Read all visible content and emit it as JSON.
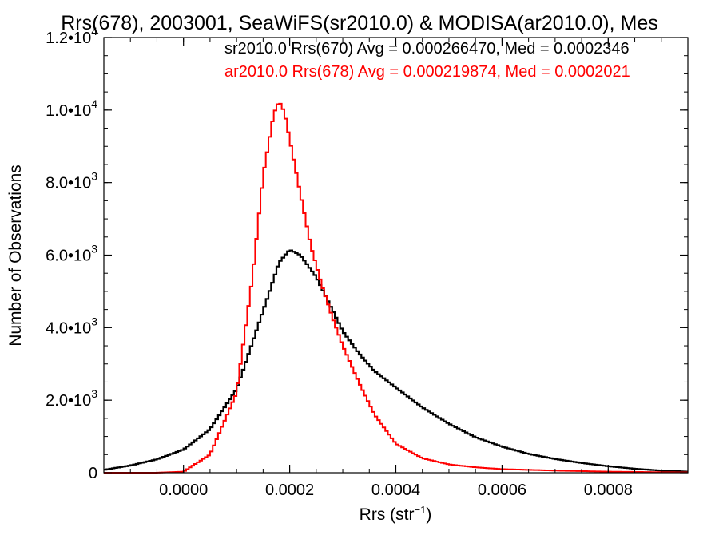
{
  "chart_data": {
    "type": "line",
    "title": "Rrs(678), 2003001, SeaWiFS(sr2010.0) & MODISA(ar2010.0), Mes",
    "xlabel_base": "Rrs (str",
    "xlabel_sup": "−1",
    "xlabel_tail": ")",
    "ylabel": "Number of Observations",
    "xlim": [
      -0.00015,
      0.00095
    ],
    "ylim": [
      0,
      12000
    ],
    "grid": false,
    "legend_placement": "top-right",
    "x_ticks": [
      {
        "value": 0.0,
        "label": "0.0000"
      },
      {
        "value": 0.0002,
        "label": "0.0002"
      },
      {
        "value": 0.0004,
        "label": "0.0004"
      },
      {
        "value": 0.0006,
        "label": "0.0006"
      },
      {
        "value": 0.0008,
        "label": "0.0008"
      }
    ],
    "y_ticks": [
      {
        "value": 0,
        "mant": "0",
        "exp": ""
      },
      {
        "value": 2000,
        "mant": "2.0•10",
        "exp": "3"
      },
      {
        "value": 4000,
        "mant": "4.0•10",
        "exp": "3"
      },
      {
        "value": 6000,
        "mant": "6.0•10",
        "exp": "3"
      },
      {
        "value": 8000,
        "mant": "8.0•10",
        "exp": "3"
      },
      {
        "value": 10000,
        "mant": "1.0•10",
        "exp": "4"
      },
      {
        "value": 12000,
        "mant": "1.2•10",
        "exp": "4"
      }
    ],
    "legend": [
      {
        "text": "sr2010.0 Rrs(670) Avg = 0.000266470, Med = 0.0002346",
        "color": "#000000"
      },
      {
        "text": "ar2010.0 Rrs(678) Avg = 0.000219874, Med = 0.0002021",
        "color": "#ff0000"
      }
    ],
    "series": [
      {
        "color": "#000000",
        "x": [
          -0.00015,
          -0.0001,
          -5e-05,
          0.0,
          5e-05,
          0.0001,
          0.00013,
          0.00016,
          0.00018,
          0.0002,
          0.00022,
          0.00025,
          0.00028,
          0.0003,
          0.00033,
          0.00036,
          0.0004,
          0.00045,
          0.0005,
          0.00055,
          0.0006,
          0.00065,
          0.0007,
          0.00075,
          0.0008,
          0.00085,
          0.0009,
          0.00095
        ],
        "y": [
          80,
          200,
          370,
          640,
          1200,
          2300,
          3600,
          4900,
          5800,
          6150,
          6000,
          5400,
          4500,
          3900,
          3300,
          2800,
          2350,
          1800,
          1350,
          980,
          720,
          520,
          380,
          270,
          180,
          110,
          60,
          30
        ]
      },
      {
        "color": "#ff0000",
        "x": [
          -0.00015,
          -0.0001,
          -5e-05,
          0.0,
          5e-05,
          0.0001,
          0.00013,
          0.00015,
          0.00017,
          0.00018,
          0.00019,
          0.0002,
          0.00022,
          0.00024,
          0.00026,
          0.00028,
          0.0003,
          0.00033,
          0.00036,
          0.0004,
          0.00045,
          0.0005,
          0.00055,
          0.0006,
          0.0007,
          0.0008,
          0.0009,
          0.00095
        ],
        "y": [
          0,
          0,
          0,
          30,
          500,
          2200,
          5400,
          8200,
          9900,
          10250,
          9950,
          9200,
          7700,
          6250,
          5200,
          4300,
          3500,
          2500,
          1600,
          800,
          400,
          230,
          150,
          100,
          60,
          30,
          15,
          10
        ]
      }
    ]
  }
}
